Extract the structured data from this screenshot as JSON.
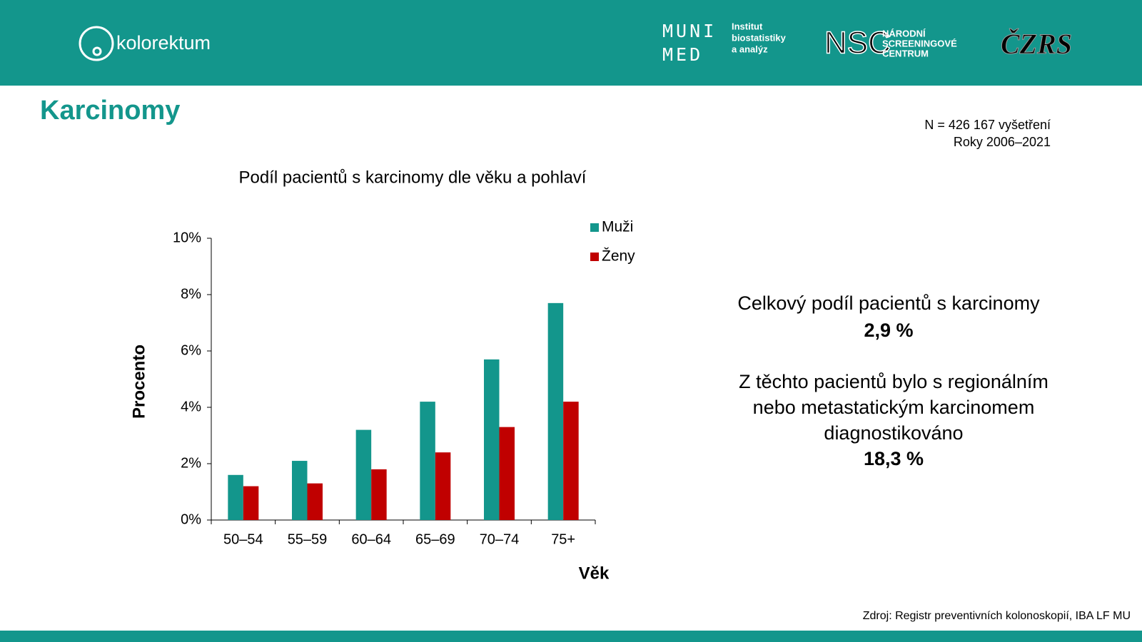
{
  "header": {
    "brand": "kolorektum",
    "muni_top": "MUNI",
    "muni_bottom": "MED",
    "institute": [
      "Institut",
      "biostatistiky",
      "a analýz"
    ],
    "nsc": "NSC",
    "nsc_name": [
      "NÁRODNÍ",
      "SCREENINGOVÉ",
      "CENTRUM"
    ],
    "czrs": "ČZRS"
  },
  "slide_title": "Karcinomy",
  "note": [
    "N = 426 167 vyšetření",
    "Roky 2006–2021"
  ],
  "summary": {
    "line1": "Celkový podíl pacientů s karcinomy",
    "value1": "2,9 %",
    "line2": [
      "Z těchto pacientů bylo s regionálním",
      "nebo metastatickým karcinomem",
      "diagnostikováno"
    ],
    "value2": "18,3 %"
  },
  "source": "Zdroj: Registr preventivních kolonoskopií, IBA LF MU",
  "chart_data": {
    "type": "bar",
    "title": "Podíl pacientů s karcinomy dle věku a pohlaví",
    "x_label": "Věk",
    "y_label": "Procento",
    "categories": [
      "50–54",
      "55–59",
      "60–64",
      "65–69",
      "70–74",
      "75+"
    ],
    "series": [
      {
        "name": "Muži",
        "color": "#13968c",
        "values": [
          1.6,
          2.1,
          3.2,
          4.2,
          5.7,
          7.7
        ]
      },
      {
        "name": "Ženy",
        "color": "#c00000",
        "values": [
          1.2,
          1.3,
          1.8,
          2.4,
          3.3,
          4.2
        ]
      }
    ],
    "ylim": [
      0,
      10
    ],
    "yticks": [
      {
        "value": 0,
        "label": "0%"
      },
      {
        "value": 2,
        "label": "2%"
      },
      {
        "value": 4,
        "label": "4%"
      },
      {
        "value": 6,
        "label": "6%"
      },
      {
        "value": 8,
        "label": "8%"
      },
      {
        "value": 10,
        "label": "10%"
      }
    ],
    "grid": false,
    "legend": "top-right"
  }
}
